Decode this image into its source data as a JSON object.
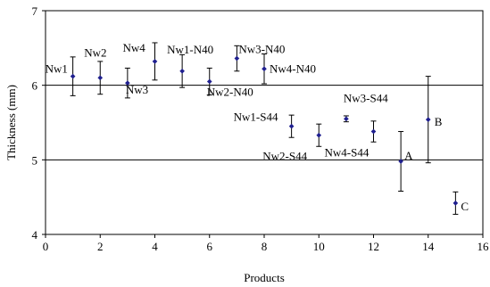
{
  "chart_data": {
    "type": "scatter",
    "title": "",
    "xlabel": "Products",
    "ylabel": "Thickness (mm)",
    "xlim": [
      0,
      16
    ],
    "ylim": [
      4,
      7
    ],
    "xticks": [
      0,
      2,
      4,
      6,
      8,
      10,
      12,
      14,
      16
    ],
    "yticks": [
      4,
      5,
      6,
      7
    ],
    "grid": "horizontal",
    "error_bars": true,
    "marker_color": "#1f1f8f",
    "points": [
      {
        "x": 1,
        "y": 6.12,
        "err": 0.26,
        "label": "Nw1"
      },
      {
        "x": 2,
        "y": 6.1,
        "err": 0.22,
        "label": "Nw2"
      },
      {
        "x": 3,
        "y": 6.03,
        "err": 0.2,
        "label": "Nw3"
      },
      {
        "x": 4,
        "y": 6.32,
        "err": 0.25,
        "label": "Nw4"
      },
      {
        "x": 5,
        "y": 6.19,
        "err": 0.22,
        "label": "Nw1-N40"
      },
      {
        "x": 6,
        "y": 6.05,
        "err": 0.18,
        "label": "Nw2-N40"
      },
      {
        "x": 7,
        "y": 6.36,
        "err": 0.17,
        "label": "Nw3-N40"
      },
      {
        "x": 8,
        "y": 6.22,
        "err": 0.2,
        "label": "Nw4-N40"
      },
      {
        "x": 9,
        "y": 5.45,
        "err": 0.15,
        "label": "Nw1-S44"
      },
      {
        "x": 10,
        "y": 5.33,
        "err": 0.15,
        "label": "Nw2-S44"
      },
      {
        "x": 11,
        "y": 5.55,
        "err": 0.04,
        "label": "Nw3-S44"
      },
      {
        "x": 12,
        "y": 5.38,
        "err": 0.14,
        "label": "Nw4-S44"
      },
      {
        "x": 13,
        "y": 4.98,
        "err": 0.4,
        "label": "A"
      },
      {
        "x": 14,
        "y": 5.54,
        "err": 0.58,
        "label": "B"
      },
      {
        "x": 15,
        "y": 4.42,
        "err": 0.15,
        "label": "C"
      }
    ]
  }
}
